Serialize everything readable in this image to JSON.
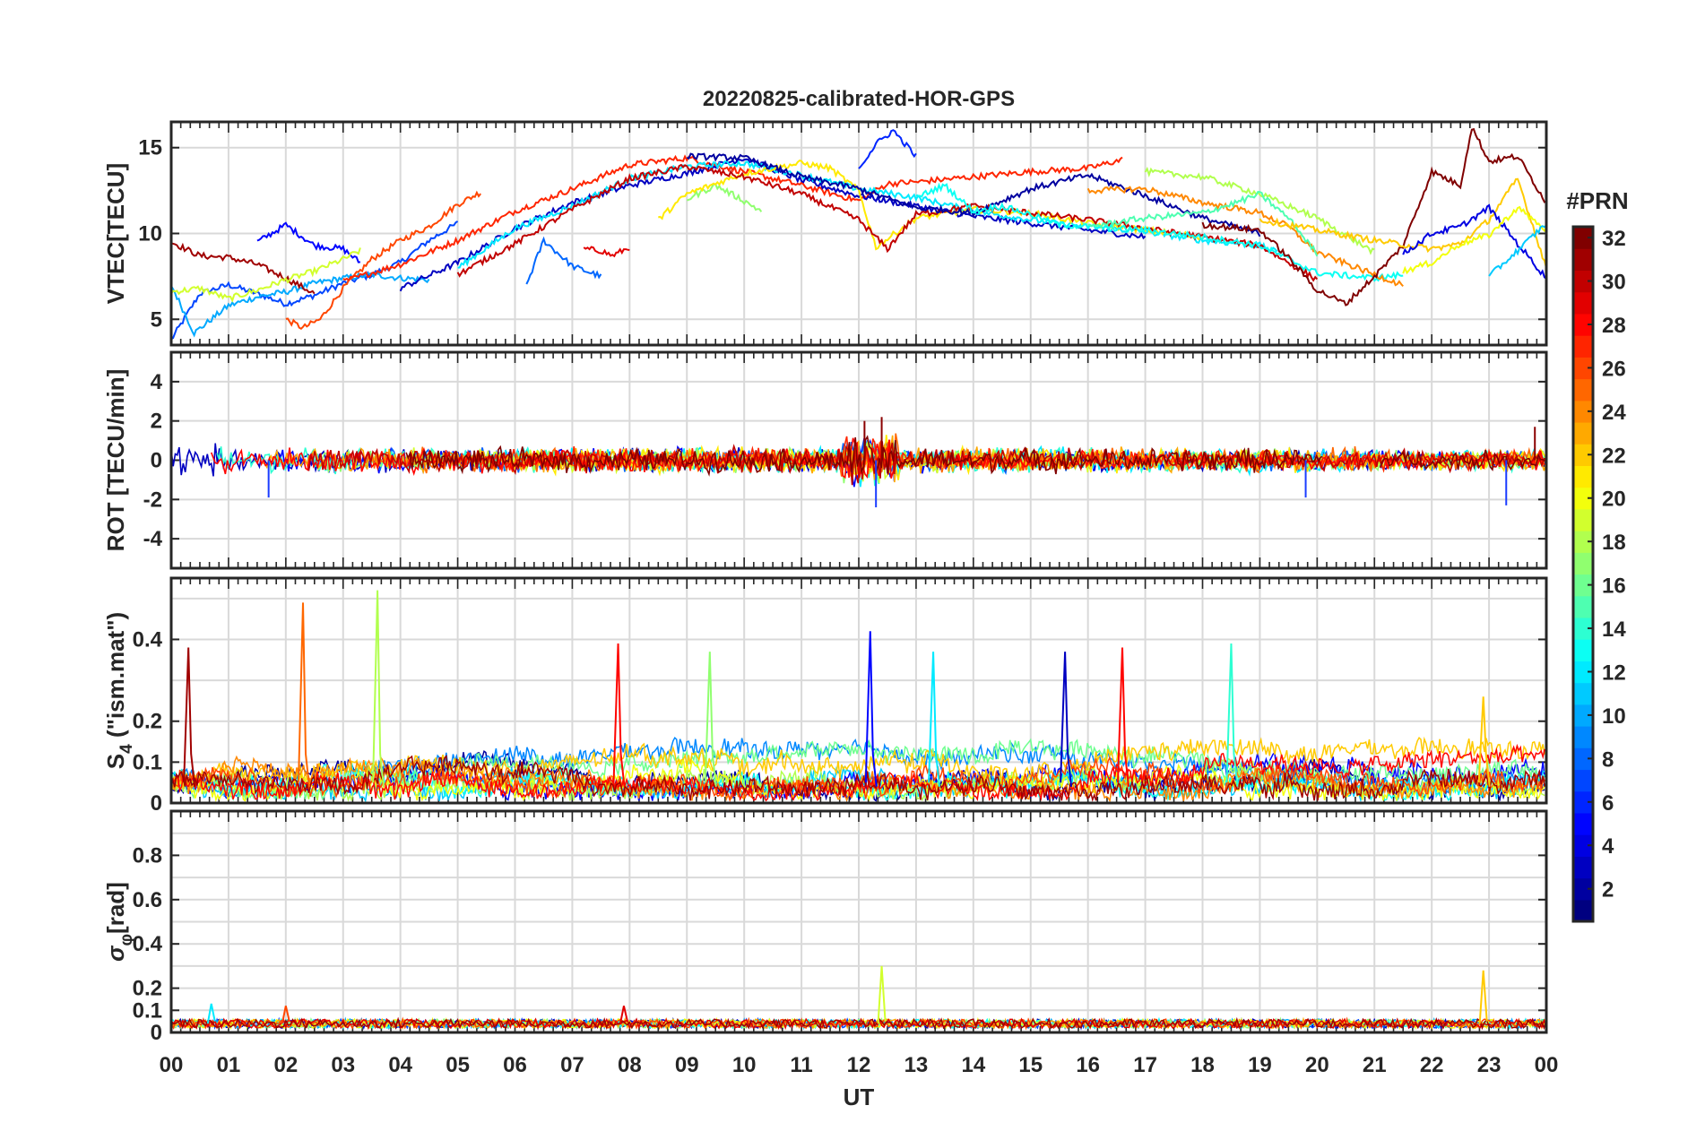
{
  "title": "20220825-calibrated-HOR-GPS",
  "chart_data": {
    "type": "line",
    "title": "20220825-calibrated-HOR-GPS",
    "xlabel": "UT",
    "xlim": [
      0,
      24
    ],
    "x_tick_labels": [
      "00",
      "01",
      "02",
      "03",
      "04",
      "05",
      "06",
      "07",
      "08",
      "09",
      "10",
      "11",
      "12",
      "13",
      "14",
      "15",
      "16",
      "17",
      "18",
      "19",
      "20",
      "21",
      "22",
      "23",
      "00"
    ],
    "grid": true,
    "colorbar": {
      "label": "#PRN",
      "range": [
        1,
        32
      ],
      "colormap": "jet",
      "tick_labels": [
        "2",
        "4",
        "6",
        "8",
        "10",
        "12",
        "14",
        "16",
        "18",
        "20",
        "22",
        "24",
        "26",
        "28",
        "30",
        "32"
      ]
    },
    "panels": [
      {
        "key": "vtec",
        "ylabel": "VTEC[TECU]",
        "ylim": [
          3.5,
          16.5
        ],
        "y_tick_labels": [
          "5",
          "10",
          "15"
        ],
        "series": [
          {
            "prn": 7,
            "x": [
              0,
              0.5,
              1,
              1.5,
              2,
              2.5,
              3,
              3.5,
              4,
              4.5,
              5
            ],
            "y": [
              3.8,
              6.5,
              7,
              6.5,
              5.9,
              6.4,
              7.1,
              7.6,
              8.3,
              9.6,
              10.6
            ]
          },
          {
            "prn": 10,
            "x": [
              0,
              0.4,
              1,
              1.5,
              2,
              2.5,
              3,
              3.5,
              4,
              4.5
            ],
            "y": [
              7,
              4.2,
              5.8,
              6.3,
              6.6,
              7.1,
              7.4,
              7.6,
              7.4,
              7.3
            ]
          },
          {
            "prn": 26,
            "x": [
              2,
              2.3,
              2.6,
              3,
              3.5,
              4,
              4.5,
              5,
              5.4
            ],
            "y": [
              5,
              4.5,
              5,
              6.8,
              8.5,
              9.6,
              10.4,
              11.7,
              12.4
            ]
          },
          {
            "prn": 31,
            "x": [
              0,
              0.5,
              1,
              1.5,
              2,
              2.5
            ],
            "y": [
              9.5,
              8.7,
              8.6,
              8.2,
              7.4,
              6.5
            ]
          },
          {
            "prn": 5,
            "x": [
              1.5,
              2,
              2.5,
              3,
              3.3
            ],
            "y": [
              9.5,
              10.5,
              9.3,
              9.1,
              8.3
            ]
          },
          {
            "prn": 19,
            "x": [
              0,
              0.5,
              1,
              1.5,
              2,
              2.5,
              3,
              3.3
            ],
            "y": [
              6.6,
              6.8,
              6.2,
              6.7,
              7.3,
              7.8,
              8.5,
              9
            ]
          },
          {
            "prn": 8,
            "x": [
              6.2,
              6.5,
              7,
              7.5
            ],
            "y": [
              7,
              9.6,
              8.1,
              7.5
            ]
          },
          {
            "prn": 29,
            "x": [
              7.2,
              7.5,
              7.7,
              8
            ],
            "y": [
              9.1,
              9,
              8.7,
              9.2
            ]
          },
          {
            "prn": 27,
            "x": [
              3,
              4,
              5,
              6,
              7,
              8,
              9,
              10,
              11,
              12,
              12.5,
              13,
              14,
              15,
              16,
              16.6
            ],
            "y": [
              7.2,
              8.2,
              9.6,
              11.3,
              12.6,
              14,
              14.4,
              13.6,
              12.8,
              11.9,
              12.9,
              13,
              13.3,
              13.6,
              13.8,
              14.3
            ]
          },
          {
            "prn": 3,
            "x": [
              4,
              5,
              6,
              7,
              8,
              9,
              10,
              11,
              12,
              13,
              14,
              15,
              16,
              17
            ],
            "y": [
              6.8,
              8.3,
              10.3,
              11.8,
              12.8,
              13.5,
              14.4,
              13.1,
              12.2,
              11.6,
              11,
              10.6,
              10.2,
              9.8
            ]
          },
          {
            "prn": 12,
            "x": [
              5,
              6,
              7,
              8,
              9,
              10,
              11,
              12,
              13,
              14,
              15,
              16,
              17,
              18,
              19,
              19.3
            ],
            "y": [
              8,
              10.3,
              11.6,
              13.2,
              13.9,
              14.1,
              13.4,
              12.6,
              12.1,
              11.3,
              10.8,
              10.4,
              10.1,
              9.6,
              9.3,
              8.9
            ]
          },
          {
            "prn": 17,
            "x": [
              9,
              9.5,
              10,
              10.3
            ],
            "y": [
              12,
              12.8,
              11.9,
              11.3
            ]
          },
          {
            "prn": 21,
            "x": [
              8.5,
              9,
              10,
              11,
              11.5,
              12,
              12.3,
              13,
              14,
              15,
              16,
              17,
              18
            ],
            "y": [
              10.8,
              12.3,
              13.5,
              14.1,
              13.8,
              12.5,
              9.2,
              10.9,
              11.4,
              11.2,
              10.6,
              10.2,
              9.8
            ]
          },
          {
            "prn": 30,
            "x": [
              5,
              6,
              7,
              8,
              9,
              10,
              11,
              12,
              12.5,
              13,
              14,
              15,
              16,
              17,
              18,
              19,
              20
            ],
            "y": [
              7.6,
              9.4,
              11.4,
              13.2,
              13.9,
              13.3,
              12.3,
              10.8,
              9.1,
              11.1,
              11.6,
              11.2,
              10.8,
              10.3,
              9.8,
              9.3,
              7.3
            ]
          },
          {
            "prn": 2,
            "x": [
              9,
              10,
              11,
              12,
              13,
              14,
              15,
              16,
              17,
              18,
              19
            ],
            "y": [
              14.5,
              14.4,
              13.3,
              12.6,
              11.5,
              11.2,
              12.6,
              13.4,
              12.2,
              10.9,
              10
            ]
          },
          {
            "prn": 6,
            "x": [
              12,
              12.3,
              12.6,
              13
            ],
            "y": [
              13.8,
              15.2,
              16,
              14.5
            ]
          },
          {
            "prn": 13,
            "x": [
              13,
              13.5,
              14,
              14.5,
              15,
              15.5,
              16,
              17,
              18,
              19,
              20,
              21,
              21.5
            ],
            "y": [
              12.1,
              12.8,
              11.3,
              11.6,
              11.1,
              10.5,
              10.4,
              10.2,
              9.8,
              9.3,
              7.7,
              7.4,
              7.6
            ]
          },
          {
            "prn": 24,
            "x": [
              16,
              17,
              18,
              19,
              19.5,
              20,
              21,
              21.5
            ],
            "y": [
              12.5,
              12.6,
              11.8,
              11.2,
              10.4,
              8.9,
              7.6,
              7
            ]
          },
          {
            "prn": 18,
            "x": [
              17,
              18,
              19,
              20,
              21
            ],
            "y": [
              13.6,
              13.3,
              12.3,
              10.9,
              8.9
            ]
          },
          {
            "prn": 15,
            "x": [
              16,
              17,
              18,
              18.5,
              19,
              19.5,
              20
            ],
            "y": [
              10.4,
              10.9,
              11.2,
              11.7,
              12.3,
              10.9,
              8.8
            ]
          },
          {
            "prn": 32,
            "x": [
              18,
              19,
              19.5,
              20,
              20.5,
              21,
              21.5,
              22,
              22.5,
              22.7,
              23,
              23.5,
              24
            ],
            "y": [
              10.5,
              10.2,
              8.6,
              6.7,
              5.9,
              7.5,
              9.3,
              13.6,
              12.8,
              16.2,
              14.2,
              14.5,
              11.8
            ]
          },
          {
            "prn": 22,
            "x": [
              19,
              20,
              21,
              22,
              22.5,
              23,
              23.5,
              24
            ],
            "y": [
              10.8,
              10.2,
              9.6,
              9.1,
              9.4,
              10.8,
              13.2,
              8
            ]
          },
          {
            "prn": 4,
            "x": [
              21.5,
              22,
              22.5,
              23,
              23.5,
              24
            ],
            "y": [
              8.8,
              10,
              10.4,
              11.5,
              9.4,
              7.4
            ]
          },
          {
            "prn": 20,
            "x": [
              21.5,
              22,
              22.5,
              23,
              23.5,
              24
            ],
            "y": [
              7.8,
              8.3,
              9.4,
              9.9,
              11.5,
              10.2
            ]
          },
          {
            "prn": 11,
            "x": [
              23,
              23.5,
              24
            ],
            "y": [
              7.5,
              9,
              10.6
            ]
          }
        ]
      },
      {
        "key": "rot",
        "ylabel": "ROT [TECU/min]",
        "ylim": [
          -5.5,
          5.5
        ],
        "y_tick_labels": [
          "-4",
          "-2",
          "0",
          "2",
          "4"
        ],
        "typical_range": [
          -0.6,
          0.6
        ],
        "peak_values": [
          {
            "x": 12.4,
            "y": 2.2
          },
          {
            "x": 12.3,
            "y": -2.4
          },
          {
            "x": 12.1,
            "y": 2
          },
          {
            "x": 1.7,
            "y": -1.9
          },
          {
            "x": 23.3,
            "y": -2.3
          },
          {
            "x": 19.8,
            "y": -1.9
          },
          {
            "x": 23.8,
            "y": 1.7
          }
        ]
      },
      {
        "key": "s4",
        "ylabel": "S4 (\"ism.mat\")",
        "ylabel_main": "S",
        "ylabel_sub": "4",
        "ylabel_tail": " (\"ism.mat\")",
        "ylim": [
          0,
          0.55
        ],
        "y_tick_labels": [
          "0",
          "0.1",
          "0.2",
          "0.4"
        ],
        "typical_range": [
          0,
          0.12
        ],
        "peak_values": [
          {
            "x": 0.3,
            "y": 0.38,
            "prn": 31
          },
          {
            "x": 2.3,
            "y": 0.49,
            "prn": 25
          },
          {
            "x": 3.6,
            "y": 0.52,
            "prn": 18
          },
          {
            "x": 7.8,
            "y": 0.39,
            "prn": 28
          },
          {
            "x": 9.4,
            "y": 0.37,
            "prn": 17
          },
          {
            "x": 12.2,
            "y": 0.42,
            "prn": 5
          },
          {
            "x": 13.3,
            "y": 0.37,
            "prn": 12
          },
          {
            "x": 15.6,
            "y": 0.37,
            "prn": 3
          },
          {
            "x": 16.6,
            "y": 0.38,
            "prn": 28
          },
          {
            "x": 18.5,
            "y": 0.39,
            "prn": 14
          },
          {
            "x": 22.9,
            "y": 0.26,
            "prn": 22
          }
        ]
      },
      {
        "key": "sigma",
        "ylabel": "σφ[rad]",
        "ylabel_main": "σ",
        "ylabel_sub": "φ",
        "ylabel_tail": "[rad]",
        "ylim": [
          0,
          1
        ],
        "y_tick_labels": [
          "0",
          "0.1",
          "0.2",
          "0.4",
          "0.6",
          "0.8"
        ],
        "typical_range": [
          0.02,
          0.06
        ],
        "peak_values": [
          {
            "x": 12.4,
            "y": 0.3,
            "prn": 19
          },
          {
            "x": 22.9,
            "y": 0.28,
            "prn": 22
          },
          {
            "x": 0.7,
            "y": 0.13,
            "prn": 12
          },
          {
            "x": 2.0,
            "y": 0.12,
            "prn": 26
          },
          {
            "x": 7.9,
            "y": 0.12,
            "prn": 29
          }
        ]
      }
    ]
  }
}
